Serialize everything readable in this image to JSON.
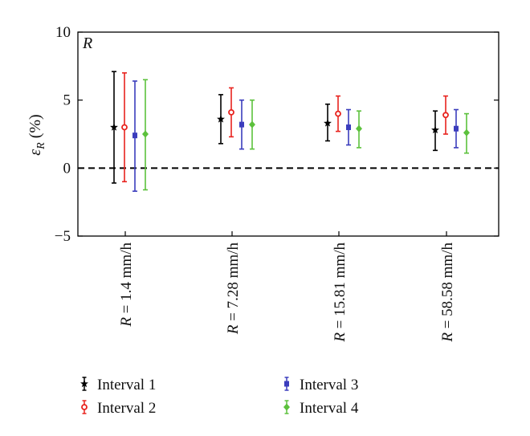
{
  "chart_data": {
    "type": "errorbar",
    "panel_label": "R",
    "ylabel_symbol": "ε",
    "ylabel_subscript": "R",
    "ylabel_unit": "(%)",
    "ylim": [
      -5,
      10
    ],
    "yticks": [
      "10",
      "5",
      "0",
      "−5"
    ],
    "ytick_values": [
      10,
      5,
      0,
      -5
    ],
    "reference_line": 0,
    "grid": false,
    "legend_position": "bottom",
    "categories": [
      {
        "var": "R",
        "text": " = 1.4 mm/h"
      },
      {
        "var": "R",
        "text": " = 7.28 mm/h"
      },
      {
        "var": "R",
        "text": " = 15.81 mm/h"
      },
      {
        "var": "R",
        "text": " = 58.58 mm/h"
      }
    ],
    "series": [
      {
        "name": "Interval 1",
        "color": "#000000",
        "marker": "star",
        "values": [
          3.0,
          3.6,
          3.3,
          2.8
        ],
        "lower": [
          -1.1,
          1.8,
          2.0,
          1.3
        ],
        "upper": [
          7.1,
          5.4,
          4.7,
          4.2
        ]
      },
      {
        "name": "Interval 2",
        "color": "#e8231e",
        "marker": "circle",
        "values": [
          3.0,
          4.1,
          4.0,
          3.9
        ],
        "lower": [
          -1.0,
          2.3,
          2.7,
          2.5
        ],
        "upper": [
          7.0,
          5.9,
          5.3,
          5.3
        ]
      },
      {
        "name": "Interval 3",
        "color": "#3b3dbd",
        "marker": "square",
        "values": [
          2.4,
          3.2,
          3.0,
          2.9
        ],
        "lower": [
          -1.7,
          1.4,
          1.7,
          1.5
        ],
        "upper": [
          6.4,
          5.0,
          4.3,
          4.3
        ]
      },
      {
        "name": "Interval 4",
        "color": "#5cc13c",
        "marker": "diamond",
        "values": [
          2.5,
          3.2,
          2.9,
          2.6
        ],
        "lower": [
          -1.6,
          1.4,
          1.5,
          1.1
        ],
        "upper": [
          6.5,
          5.0,
          4.2,
          4.0
        ]
      }
    ]
  }
}
